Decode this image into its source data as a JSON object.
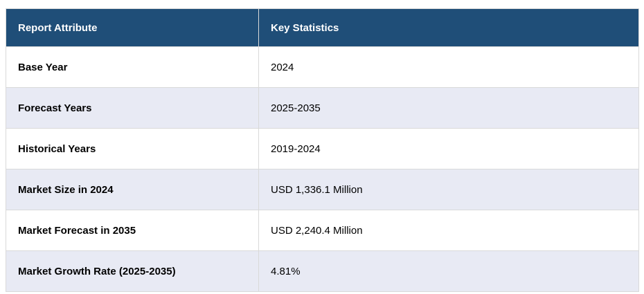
{
  "table": {
    "columns": [
      {
        "label": "Report Attribute"
      },
      {
        "label": "Key Statistics"
      }
    ],
    "rows": [
      {
        "attribute": "Base Year",
        "value": "2024"
      },
      {
        "attribute": "Forecast Years",
        "value": "2025-2035"
      },
      {
        "attribute": "Historical Years",
        "value": "2019-2024"
      },
      {
        "attribute": "Market Size in 2024",
        "value": "USD 1,336.1 Million"
      },
      {
        "attribute": "Market Forecast in 2035",
        "value": "USD 2,240.4 Million"
      },
      {
        "attribute": "Market Growth Rate (2025-2035)",
        "value": "4.81%"
      }
    ],
    "colors": {
      "header_bg": "#1F4E78",
      "header_text": "#FFFFFF",
      "row_bg": "#FFFFFF",
      "row_alt_bg": "#E8EAF4",
      "border": "#D9D9D9",
      "cell_text": "#000000"
    }
  }
}
